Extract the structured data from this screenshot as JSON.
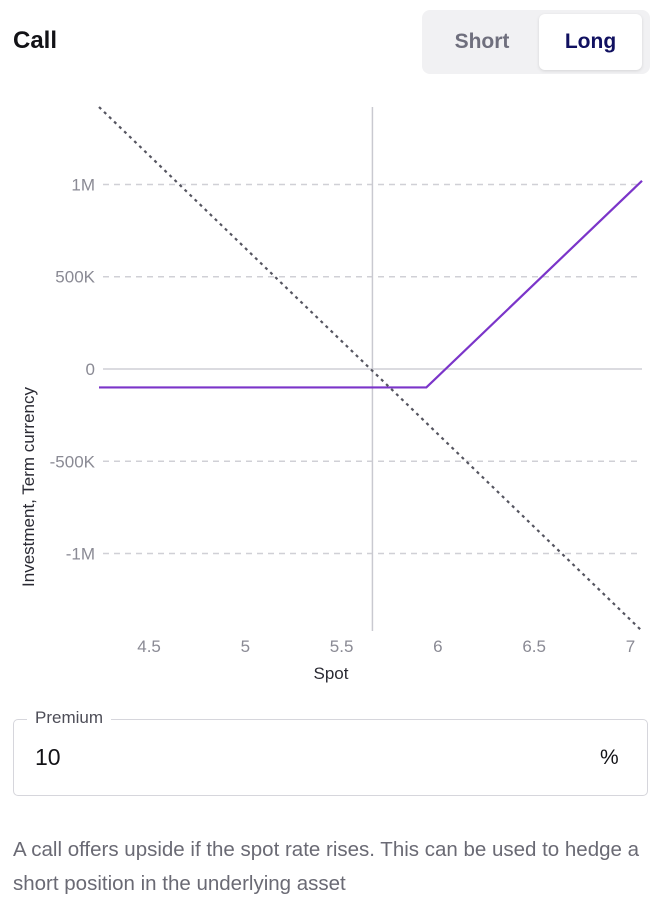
{
  "header": {
    "title": "Call",
    "toggle": {
      "short_label": "Short",
      "long_label": "Long",
      "selected": "Long"
    }
  },
  "chart_data": {
    "type": "line",
    "xlabel": "Spot",
    "ylabel": "Investment, Term currency",
    "xlim": [
      4.24,
      7.06
    ],
    "ylim": [
      -1420000,
      1420000
    ],
    "x_ticks": [
      {
        "value": 4.5,
        "label": "4.5"
      },
      {
        "value": 5,
        "label": "5"
      },
      {
        "value": 5.5,
        "label": "5.5"
      },
      {
        "value": 6,
        "label": "6"
      },
      {
        "value": 6.5,
        "label": "6.5"
      },
      {
        "value": 7,
        "label": "7"
      }
    ],
    "y_ticks": [
      {
        "value": 1000000,
        "label": "1M"
      },
      {
        "value": 500000,
        "label": "500K"
      },
      {
        "value": 0,
        "label": "0"
      },
      {
        "value": -500000,
        "label": "-500K"
      },
      {
        "value": -1000000,
        "label": "-1M"
      }
    ],
    "grid": true,
    "reference_x": 5.66,
    "series": [
      {
        "style": "solid",
        "color": "#7b35c9",
        "x": [
          4.24,
          5.94,
          7.06
        ],
        "y": [
          -100000,
          -100000,
          1020000
        ]
      },
      {
        "style": "dotted",
        "color": "#555560",
        "x": [
          4.24,
          7.06
        ],
        "y": [
          1420000,
          -1420000
        ]
      }
    ]
  },
  "premium": {
    "label": "Premium",
    "value": "10",
    "unit": "%"
  },
  "description": "A call offers upside if the spot rate rises. This can be used to hedge a short position in the underlying asset"
}
